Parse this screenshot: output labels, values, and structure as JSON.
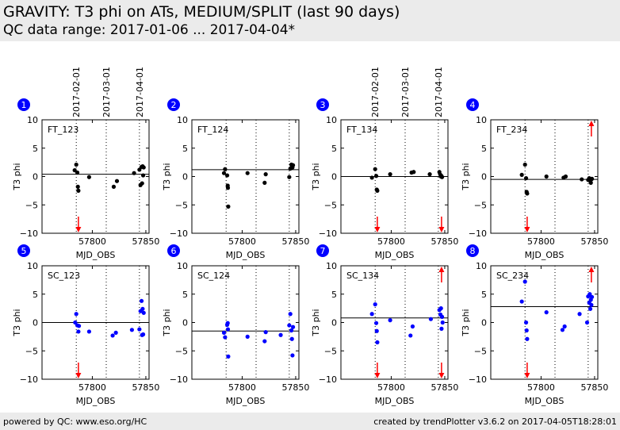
{
  "header": {
    "title": "GRAVITY: T3 phi on ATs, MEDIUM/SPLIT (last 90 days)",
    "subtitle": "QC data range: 2017-01-06 ... 2017-04-04*"
  },
  "footer": {
    "left": "powered by QC: www.eso.org/HC",
    "right": "created by trendPlotter v3.6.2 on 2017-04-05T18:28:01"
  },
  "colors": {
    "ft": "#000000",
    "sc": "#0000ff",
    "outlier": "#ff0000",
    "badge": "#0000ff"
  },
  "date_markers": [
    {
      "label": "2017-02-01",
      "mjd": 57785
    },
    {
      "label": "2017-03-01",
      "mjd": 57813
    },
    {
      "label": "2017-04-01",
      "mjd": 57844
    }
  ],
  "chart_data": [
    {
      "type": "scatter",
      "panel": "1",
      "name": "FT_123",
      "color": "black",
      "xlabel": "MJD_OBS",
      "ylabel": "T3 phi",
      "xlim": [
        57753,
        57853
      ],
      "ylim": [
        -10,
        10
      ],
      "xticks": [
        "57800",
        "57850"
      ],
      "yticks": [
        "10",
        "5",
        "0",
        "−5",
        "−10"
      ],
      "ref_line": 0.4,
      "x": [
        57783.5,
        57785,
        57786,
        57786.5,
        57787,
        57797,
        57820,
        57823,
        57839,
        57844,
        57845,
        57846,
        57846.5,
        57847,
        57847.5,
        57848
      ],
      "y": [
        1.1,
        2.1,
        0.7,
        -1.8,
        -2.5,
        -0.1,
        -1.8,
        -0.8,
        0.6,
        1.2,
        -1.5,
        1.7,
        -1.2,
        1.8,
        0.2,
        1.6
      ],
      "outliers": [
        {
          "x": 57787,
          "dir": "down"
        }
      ]
    },
    {
      "type": "scatter",
      "panel": "2",
      "name": "FT_124",
      "color": "black",
      "xlabel": "MJD_OBS",
      "ylabel": "T3 phi",
      "xlim": [
        57753,
        57853
      ],
      "ylim": [
        -10,
        10
      ],
      "xticks": [
        "57800",
        "57850"
      ],
      "yticks": [
        "10",
        "5",
        "0",
        "−5",
        "−10"
      ],
      "ref_line": 1.2,
      "x": [
        57783,
        57784,
        57786,
        57786.5,
        57786.7,
        57787,
        57805,
        57821,
        57822,
        57844,
        57845,
        57846,
        57846.5,
        57847,
        57847.5
      ],
      "y": [
        0.6,
        1.3,
        0.2,
        -1.6,
        -2.0,
        -5.3,
        0.6,
        -1.1,
        0.4,
        -0.1,
        1.4,
        2.1,
        1.9,
        1.6,
        2.0
      ],
      "outliers": []
    },
    {
      "type": "scatter",
      "panel": "3",
      "name": "FT_134",
      "color": "black",
      "xlabel": "MJD_OBS",
      "ylabel": "T3 phi",
      "xlim": [
        57753,
        57853
      ],
      "ylim": [
        -10,
        10
      ],
      "xticks": [
        "57800",
        "57850"
      ],
      "yticks": [
        "10",
        "5",
        "0",
        "−5",
        "−10"
      ],
      "ref_line": 0.0,
      "x": [
        57782,
        57785,
        57786,
        57786.5,
        57787,
        57799,
        57819,
        57821,
        57836,
        57845,
        57846,
        57846.5,
        57847,
        57847.5
      ],
      "y": [
        -0.2,
        1.3,
        0.1,
        -2.3,
        -2.5,
        0.4,
        0.7,
        0.8,
        0.4,
        0.8,
        0.3,
        0.0,
        0.1,
        -0.1
      ],
      "outliers": [
        {
          "x": 57787,
          "dir": "down"
        },
        {
          "x": 57847,
          "dir": "down"
        }
      ]
    },
    {
      "type": "scatter",
      "panel": "4",
      "name": "FT_234",
      "color": "black",
      "xlabel": "MJD_OBS",
      "ylabel": "T3 phi",
      "xlim": [
        57753,
        57853
      ],
      "ylim": [
        -10,
        10
      ],
      "xticks": [
        "57800",
        "57850"
      ],
      "yticks": [
        "10",
        "5",
        "0",
        "−5",
        "−10"
      ],
      "ref_line": -0.5,
      "x": [
        57782,
        57785,
        57786,
        57786.5,
        57787,
        57805,
        57821,
        57823,
        57838,
        57844,
        57845,
        57846,
        57846.5,
        57847,
        57847.5
      ],
      "y": [
        0.3,
        2.1,
        -0.3,
        -2.7,
        -3.0,
        0.0,
        -0.2,
        0.0,
        -0.5,
        -0.6,
        -0.3,
        -0.8,
        -1.1,
        -0.5,
        -0.4
      ],
      "outliers": [
        {
          "x": 57787,
          "dir": "down"
        },
        {
          "x": 57847,
          "dir": "up"
        }
      ]
    },
    {
      "type": "scatter",
      "panel": "5",
      "name": "SC_123",
      "color": "blue",
      "xlabel": "MJD_OBS",
      "ylabel": "T3 phi",
      "xlim": [
        57753,
        57853
      ],
      "ylim": [
        -10,
        10
      ],
      "xticks": [
        "57800",
        "57850"
      ],
      "yticks": [
        "10",
        "5",
        "0",
        "−5",
        "−10"
      ],
      "ref_line": 0.0,
      "x": [
        57784,
        57785,
        57786,
        57787,
        57787.5,
        57797,
        57819,
        57822,
        57837,
        57844,
        57845,
        57846,
        57846.5,
        57847,
        57847.5,
        57848
      ],
      "y": [
        0.0,
        1.5,
        -0.5,
        -1.6,
        -0.6,
        -1.6,
        -2.3,
        -1.8,
        -1.3,
        -1.2,
        2.0,
        3.8,
        -2.2,
        2.4,
        -2.1,
        1.7
      ],
      "outliers": [
        {
          "x": 57787,
          "dir": "down"
        }
      ]
    },
    {
      "type": "scatter",
      "panel": "6",
      "name": "SC_124",
      "color": "blue",
      "xlabel": "MJD_OBS",
      "ylabel": "T3 phi",
      "xlim": [
        57753,
        57853
      ],
      "ylim": [
        -10,
        10
      ],
      "xticks": [
        "57800",
        "57850"
      ],
      "yticks": [
        "10",
        "5",
        "0",
        "−5",
        "−10"
      ],
      "ref_line": -1.5,
      "x": [
        57783,
        57784,
        57786,
        57786.5,
        57786.7,
        57787,
        57805,
        57821,
        57822,
        57836,
        57844,
        57845,
        57846,
        57846.5,
        57847,
        57847.5
      ],
      "y": [
        -1.8,
        -2.6,
        -0.4,
        -0.1,
        -1.2,
        -6.0,
        -2.5,
        -3.3,
        -1.7,
        -2.2,
        -0.5,
        1.5,
        -1.4,
        -2.9,
        -5.8,
        -0.8
      ],
      "outliers": []
    },
    {
      "type": "scatter",
      "panel": "7",
      "name": "SC_134",
      "color": "blue",
      "xlabel": "MJD_OBS",
      "ylabel": "T3 phi",
      "xlim": [
        57753,
        57853
      ],
      "ylim": [
        -10,
        10
      ],
      "xticks": [
        "57800",
        "57850"
      ],
      "yticks": [
        "10",
        "5",
        "0",
        "−5",
        "−10"
      ],
      "ref_line": 0.8,
      "x": [
        57782,
        57785,
        57786,
        57786.5,
        57787,
        57799,
        57818,
        57820,
        57837,
        57845,
        57846,
        57846.5,
        57847,
        57847.5,
        57848
      ],
      "y": [
        1.5,
        3.2,
        -0.1,
        -1.5,
        -3.5,
        0.4,
        -2.3,
        -0.7,
        0.6,
        2.2,
        1.4,
        2.5,
        -1.1,
        1.0,
        0.0
      ],
      "outliers": [
        {
          "x": 57787,
          "dir": "down"
        },
        {
          "x": 57847,
          "dir": "down"
        },
        {
          "x": 57847,
          "dir": "up"
        }
      ]
    },
    {
      "type": "scatter",
      "panel": "8",
      "name": "SC_234",
      "color": "blue",
      "xlabel": "MJD_OBS",
      "ylabel": "T3 phi",
      "xlim": [
        57753,
        57853
      ],
      "ylim": [
        -10,
        10
      ],
      "xticks": [
        "57800",
        "57850"
      ],
      "yticks": [
        "10",
        "5",
        "0",
        "−5",
        "−10"
      ],
      "ref_line": 2.8,
      "x": [
        57782,
        57785,
        57786,
        57786.5,
        57787,
        57805,
        57820,
        57822,
        57836,
        57843,
        57844,
        57845,
        57845.5,
        57846,
        57846.5,
        57847,
        57847.5
      ],
      "y": [
        3.7,
        7.2,
        0.0,
        -1.4,
        -2.9,
        1.8,
        -1.3,
        -0.7,
        1.5,
        0.0,
        4.6,
        3.5,
        5.0,
        2.4,
        4.0,
        3.1,
        4.5
      ],
      "outliers": [
        {
          "x": 57787,
          "dir": "down"
        },
        {
          "x": 57847,
          "dir": "up"
        }
      ]
    }
  ]
}
